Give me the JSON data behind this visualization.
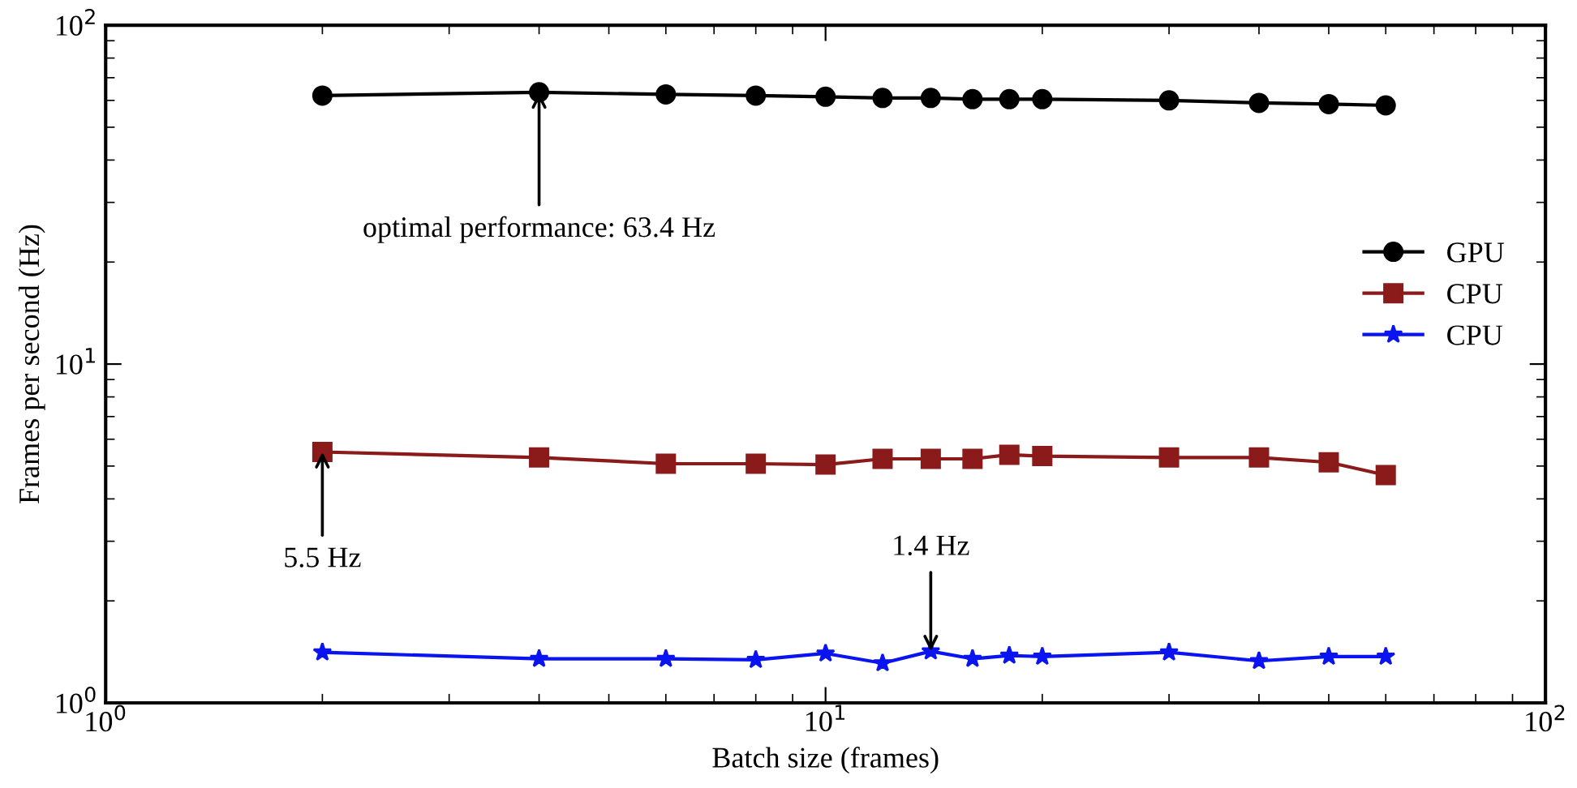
{
  "chart_data": {
    "type": "line",
    "xlabel": "Batch size (frames)",
    "ylabel": "Frames per second (Hz)",
    "x": [
      2,
      4,
      6,
      8,
      10,
      12,
      14,
      16,
      18,
      20,
      30,
      40,
      50,
      60
    ],
    "series": [
      {
        "name": "GPU",
        "color": "#000000",
        "marker": "circle",
        "values": [
          62,
          63.4,
          62.5,
          62,
          61.5,
          61,
          61,
          60.5,
          60.5,
          60.5,
          60,
          59,
          58.5,
          58
        ]
      },
      {
        "name": "CPU",
        "color": "#8b1a1a",
        "marker": "square",
        "values": [
          5.5,
          5.3,
          5.08,
          5.08,
          5.05,
          5.25,
          5.25,
          5.25,
          5.4,
          5.35,
          5.3,
          5.3,
          5.13,
          4.7
        ]
      },
      {
        "name": "CPU",
        "color": "#0a14f0",
        "marker": "star",
        "values": [
          1.41,
          1.35,
          1.35,
          1.34,
          1.4,
          1.31,
          1.42,
          1.35,
          1.38,
          1.37,
          1.41,
          1.33,
          1.37,
          1.37
        ]
      }
    ],
    "annotations": [
      {
        "text": "optimal performance: 63.4 Hz",
        "x": 4,
        "y": 63.4
      },
      {
        "text": "5.5 Hz",
        "x": 2,
        "y": 5.5
      },
      {
        "text": "1.4 Hz",
        "x": 14,
        "y": 1.42
      }
    ],
    "log": "xy",
    "xlim": [
      1,
      100
    ],
    "ylim": [
      1,
      100
    ],
    "xticks": [
      {
        "value": 1,
        "label": "10$^{0}$"
      },
      {
        "value": 10,
        "label": "10$^{1}$"
      },
      {
        "value": 100,
        "label": "10$^{2}$"
      }
    ],
    "yticks": [
      {
        "value": 1,
        "label": "10$^{0}$"
      },
      {
        "value": 10,
        "label": "10$^{1}$"
      },
      {
        "value": 100,
        "label": "10$^{2}$"
      }
    ],
    "grid": false,
    "legend": "right",
    "line_style": "solid"
  }
}
